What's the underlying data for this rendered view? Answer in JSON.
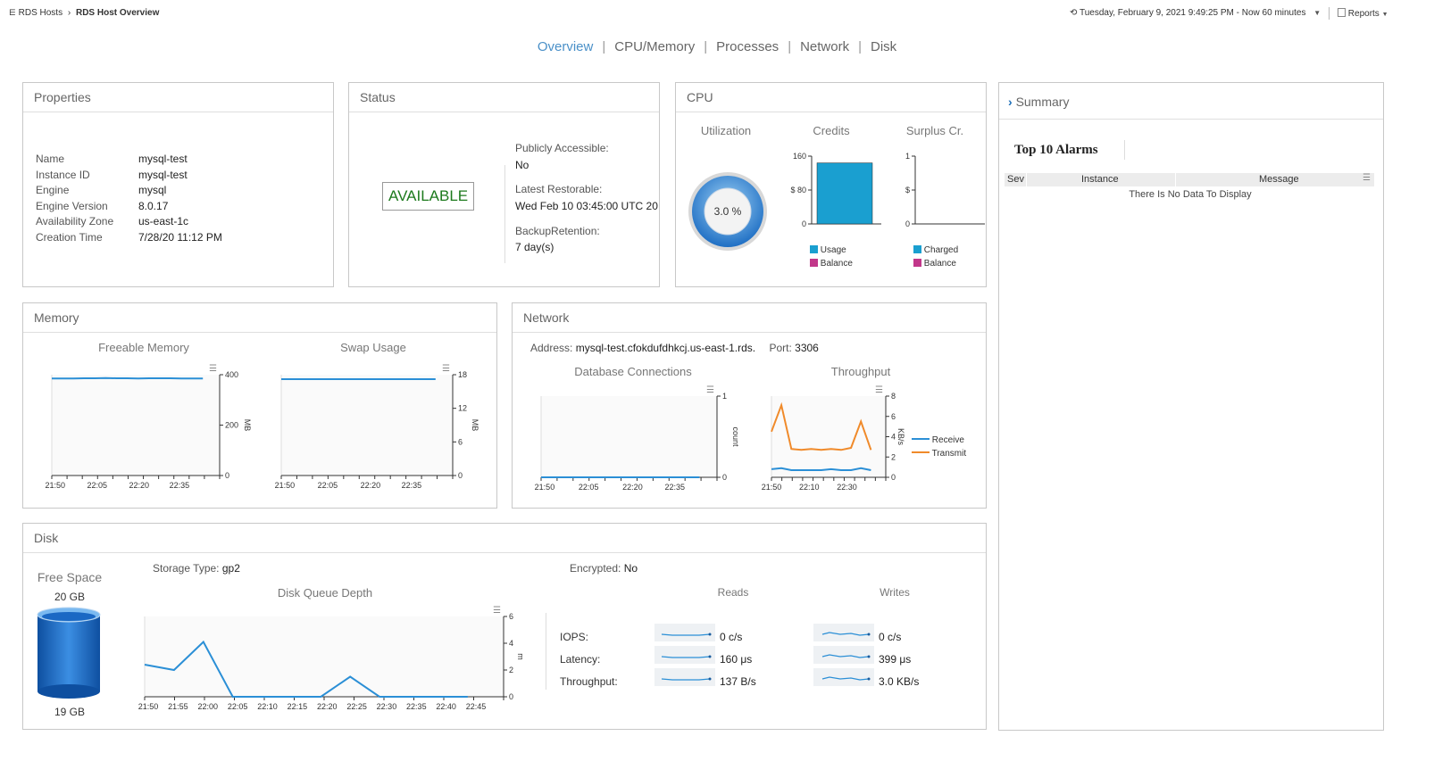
{
  "breadcrumb": {
    "parent": "RDS Hosts",
    "current": "RDS Host Overview"
  },
  "header": {
    "time_range": "Tuesday, February 9, 2021 9:49:25 PM - Now 60 minutes",
    "reports": "Reports"
  },
  "tabs": [
    {
      "label": "Overview",
      "active": true
    },
    {
      "label": "CPU/Memory"
    },
    {
      "label": "Processes"
    },
    {
      "label": "Network"
    },
    {
      "label": "Disk"
    }
  ],
  "properties": {
    "title": "Properties",
    "rows": [
      {
        "label": "Name",
        "value": "mysql-test"
      },
      {
        "label": "Instance ID",
        "value": "mysql-test"
      },
      {
        "label": "Engine",
        "value": "mysql"
      },
      {
        "label": "Engine Version",
        "value": "8.0.17"
      },
      {
        "label": "Availability Zone",
        "value": "us-east-1c"
      },
      {
        "label": "Creation Time",
        "value": "7/28/20 11:12 PM"
      }
    ]
  },
  "status": {
    "title": "Status",
    "state": "AVAILABLE",
    "public_label": "Publicly Accessible:",
    "public_value": "No",
    "restorable_label": "Latest Restorable:",
    "restorable_value": "Wed Feb 10 03:45:00 UTC 20",
    "retention_label": "BackupRetention:",
    "retention_value": "7 day(s)"
  },
  "cpu": {
    "title": "CPU",
    "utilization_title": "Utilization",
    "utilization_value": "3.0 %",
    "credits_title": "Credits",
    "credits_ticks": [
      "160",
      "$ 80",
      "0"
    ],
    "credits_usage_fraction": 0.9,
    "credits_legend": [
      "Usage",
      "Balance"
    ],
    "surplus_title": "Surplus Cr.",
    "surplus_ticks": [
      "1",
      "$",
      "0"
    ],
    "surplus_legend": [
      "Charged",
      "Balance"
    ],
    "colors": {
      "usage": "#1a9fd0",
      "balance": "#c2378a"
    }
  },
  "memory": {
    "title": "Memory",
    "freeable": {
      "title": "Freeable Memory",
      "unit": "MB",
      "y_ticks": [
        "400",
        "200",
        "0"
      ],
      "x_ticks": [
        "21:50",
        "22:05",
        "22:20",
        "22:35"
      ],
      "ylim": [
        0,
        400
      ],
      "values": [
        385,
        385,
        385,
        386,
        386,
        387,
        386,
        386,
        385,
        386,
        386,
        386,
        385,
        385,
        385
      ]
    },
    "swap": {
      "title": "Swap Usage",
      "unit": "MB",
      "y_ticks": [
        "18",
        "12",
        "6",
        "0"
      ],
      "x_ticks": [
        "21:50",
        "22:05",
        "22:20",
        "22:35"
      ],
      "ylim": [
        0,
        18
      ],
      "values": [
        17.2,
        17.2,
        17.2,
        17.2,
        17.2,
        17.2,
        17.2,
        17.2,
        17.2,
        17.2,
        17.2,
        17.2,
        17.2,
        17.2,
        17.2
      ]
    }
  },
  "network": {
    "title": "Network",
    "address_label": "Address:",
    "address_value": "mysql-test.cfokdufdhkcj.us-east-1.rds.",
    "port_label": "Port:",
    "port_value": "3306",
    "connections": {
      "title": "Database Connections",
      "unit": "count",
      "y_ticks": [
        "1",
        "0"
      ],
      "x_ticks": [
        "21:50",
        "22:05",
        "22:20",
        "22:35"
      ],
      "ylim": [
        0,
        1
      ],
      "values": [
        0,
        0,
        0,
        0,
        0,
        0,
        0,
        0,
        0,
        0,
        0,
        0,
        0,
        0,
        0
      ]
    },
    "throughput": {
      "title": "Throughput",
      "unit": "KB/s",
      "y_ticks": [
        "8",
        "6",
        "4",
        "2",
        "0"
      ],
      "x_ticks": [
        "21:50",
        "22:10",
        "22:30"
      ],
      "ylim": [
        0,
        8
      ],
      "receive": [
        0.8,
        0.9,
        0.7,
        0.7,
        0.7,
        0.7,
        0.8,
        0.7,
        0.7,
        0.9,
        0.7
      ],
      "transmit": [
        4.5,
        7.1,
        2.8,
        2.7,
        2.8,
        2.7,
        2.8,
        2.7,
        2.9,
        5.5,
        2.7
      ],
      "legend": [
        "Receive",
        "Transmit"
      ],
      "colors": {
        "receive": "#2b8fd6",
        "transmit": "#f08a2a"
      }
    }
  },
  "disk": {
    "title": "Disk",
    "free_space_title": "Free Space",
    "free_space_total": "20 GB",
    "free_space_value": "19 GB",
    "storage_label": "Storage Type:",
    "storage_value": "gp2",
    "encrypted_label": "Encrypted:",
    "encrypted_value": "No",
    "queue": {
      "title": "Disk Queue Depth",
      "unit": "m",
      "y_ticks": [
        "6",
        "4",
        "2",
        "0"
      ],
      "x_ticks": [
        "21:50",
        "21:55",
        "22:00",
        "22:05",
        "22:10",
        "22:15",
        "22:20",
        "22:25",
        "22:30",
        "22:35",
        "22:40",
        "22:45"
      ],
      "ylim": [
        0,
        6
      ],
      "values": [
        2.4,
        2.0,
        4.1,
        0.0,
        0.0,
        0.0,
        0.0,
        1.5,
        0.0,
        0.0,
        0.0,
        0.0
      ]
    },
    "reads_title": "Reads",
    "writes_title": "Writes",
    "metrics": [
      {
        "label": "IOPS:",
        "reads": "0 c/s",
        "writes": "0 c/s"
      },
      {
        "label": "Latency:",
        "reads": "160 μs",
        "writes": "399 μs"
      },
      {
        "label": "Throughput:",
        "reads": "137 B/s",
        "writes": "3.0 KB/s"
      }
    ]
  },
  "summary": {
    "title": "Summary",
    "alarms_title": "Top 10 Alarms",
    "columns": [
      "Sev",
      "Instance",
      "Message"
    ],
    "empty_text": "There Is No Data To Display"
  }
}
